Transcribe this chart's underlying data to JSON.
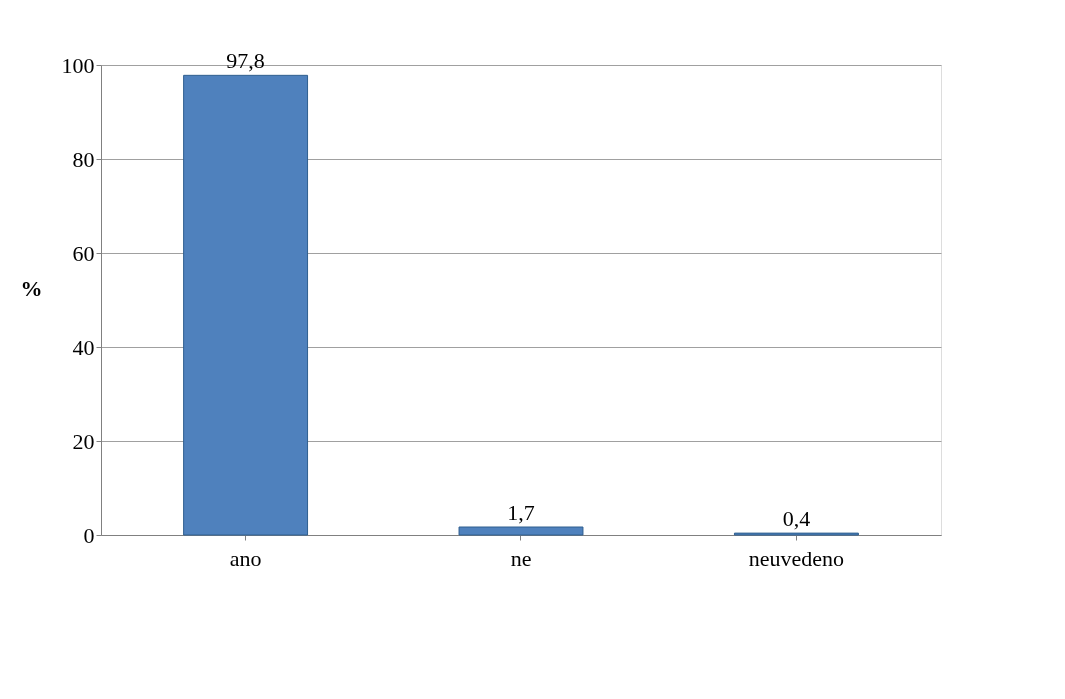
{
  "chart_data": {
    "type": "bar",
    "categories": [
      "ano",
      "ne",
      "neuvedeno"
    ],
    "values": [
      97.8,
      1.7,
      0.4
    ],
    "value_labels": [
      "97,8",
      "1,7",
      "0,4"
    ],
    "color": "#4f81bd",
    "ylabel": "%",
    "ylim": [
      0,
      100
    ],
    "yticks": [
      0,
      20,
      40,
      60,
      80,
      100
    ],
    "grid": "y"
  }
}
